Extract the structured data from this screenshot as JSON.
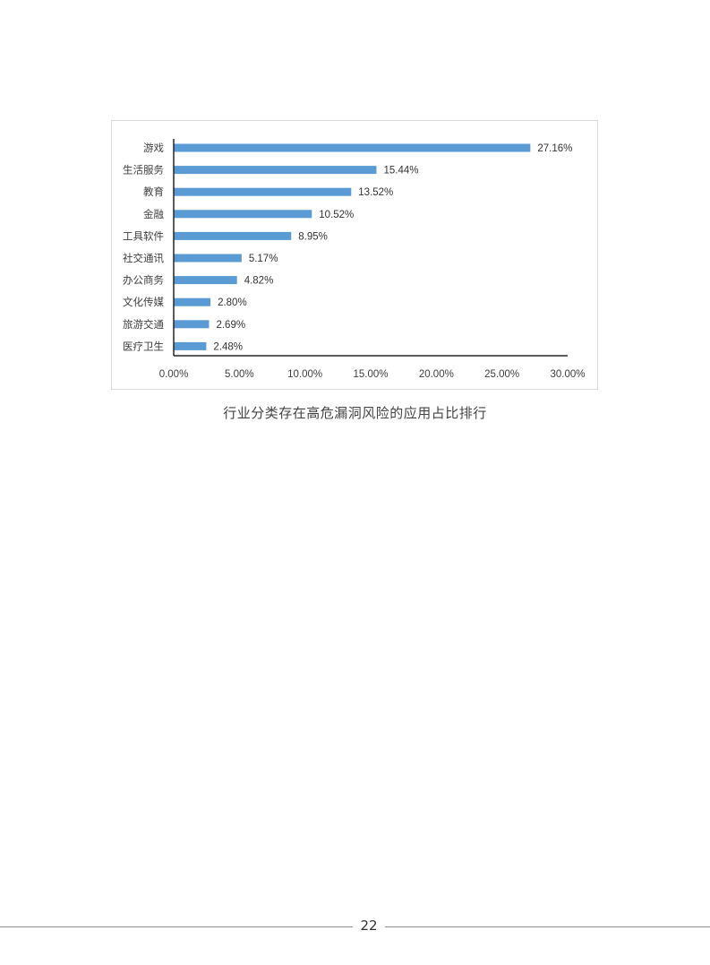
{
  "chart_data": {
    "type": "bar",
    "orientation": "horizontal",
    "categories": [
      "游戏",
      "生活服务",
      "教育",
      "金融",
      "工具软件",
      "社交通讯",
      "办公商务",
      "文化传媒",
      "旅游交通",
      "医疗卫生"
    ],
    "values": [
      27.16,
      15.44,
      13.52,
      10.52,
      8.95,
      5.17,
      4.82,
      2.8,
      2.69,
      2.48
    ],
    "value_labels": [
      "27.16%",
      "15.44%",
      "13.52%",
      "10.52%",
      "8.95%",
      "5.17%",
      "4.82%",
      "2.80%",
      "2.69%",
      "2.48%"
    ],
    "x_ticks": [
      "0.00%",
      "5.00%",
      "10.00%",
      "15.00%",
      "20.00%",
      "25.00%",
      "30.00%"
    ],
    "xlim": [
      0,
      30
    ],
    "grid": false,
    "bar_color": "#5b9bd5"
  },
  "caption": "行业分类存在高危漏洞风险的应用占比排行",
  "page_number": "22"
}
